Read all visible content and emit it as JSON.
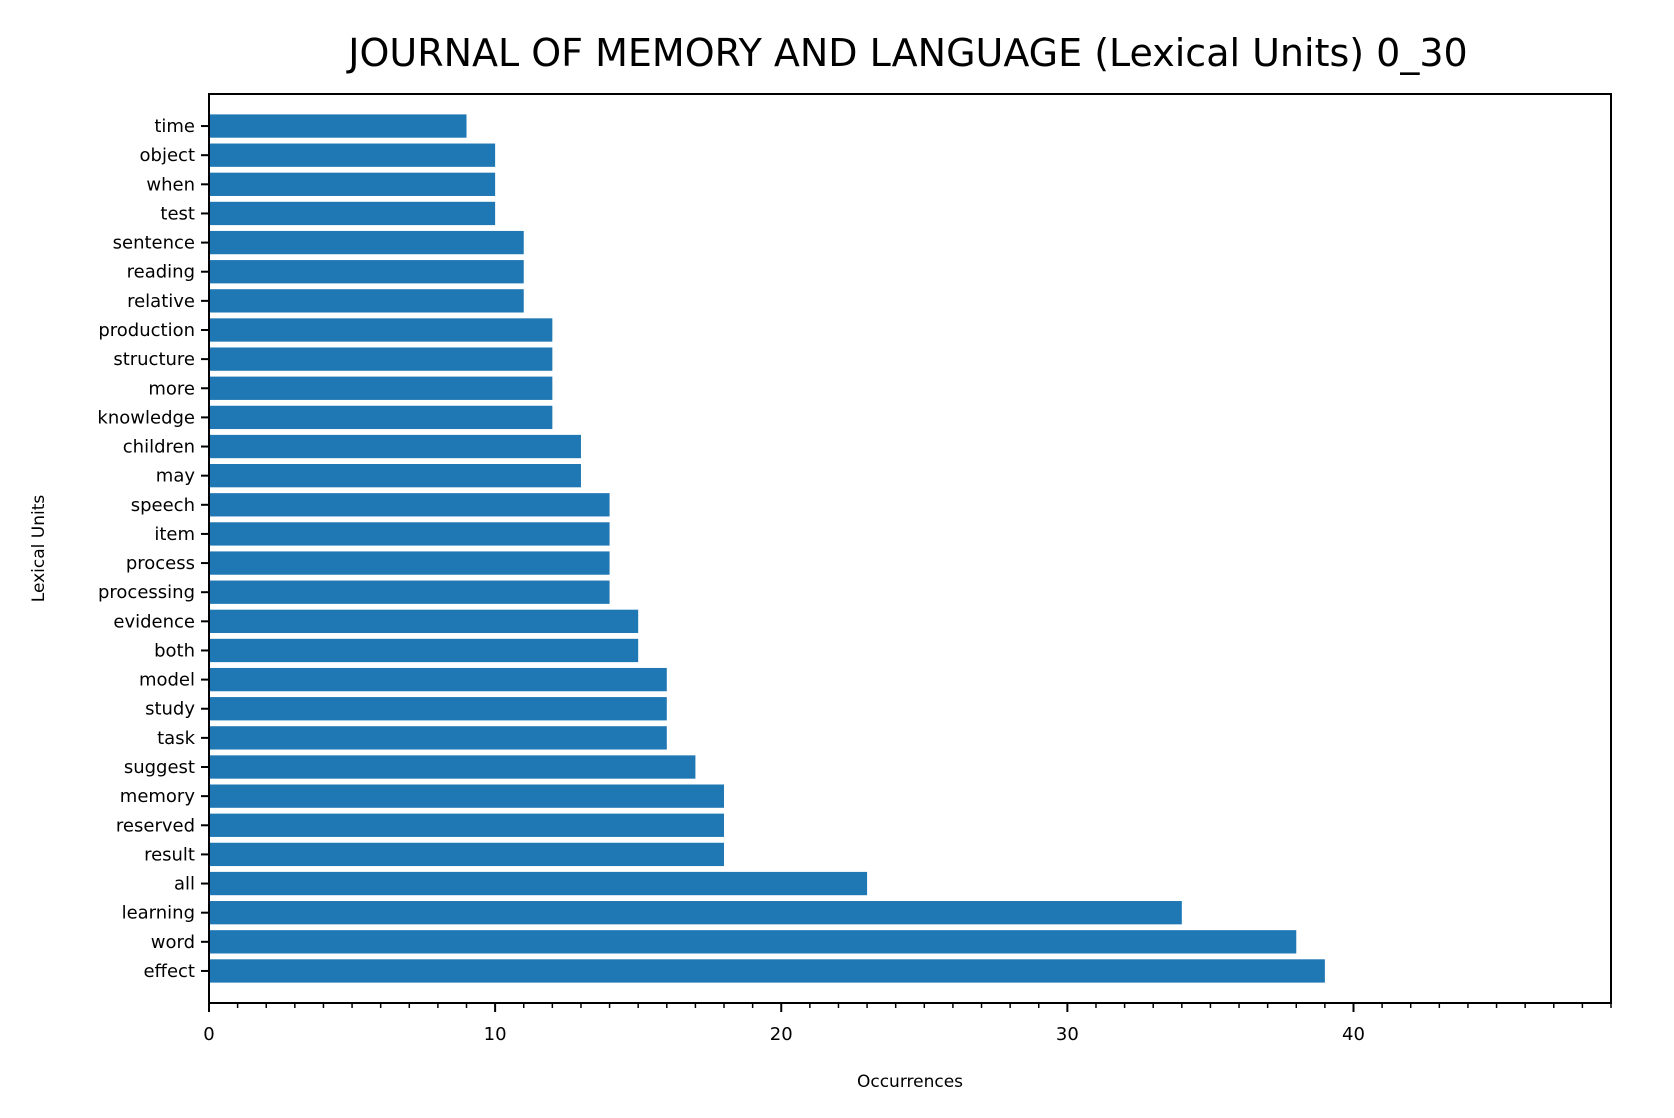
{
  "chart_data": {
    "type": "bar",
    "orientation": "horizontal",
    "title": "JOURNAL OF MEMORY AND LANGUAGE (Lexical Units) 0_30",
    "xlabel": "Occurrences",
    "ylabel": "Lexical Units",
    "xlim": [
      0,
      49
    ],
    "xticks": [
      0,
      10,
      20,
      30,
      40
    ],
    "grid": false,
    "bar_color": "#1f77b4",
    "categories": [
      "effect",
      "word",
      "learning",
      "all",
      "result",
      "reserved",
      "memory",
      "suggest",
      "task",
      "study",
      "model",
      "both",
      "evidence",
      "processing",
      "process",
      "item",
      "speech",
      "may",
      "children",
      "knowledge",
      "more",
      "structure",
      "production",
      "relative",
      "reading",
      "sentence",
      "test",
      "when",
      "object",
      "time"
    ],
    "values": [
      39,
      38,
      34,
      23,
      18,
      18,
      18,
      17,
      16,
      16,
      16,
      15,
      15,
      14,
      14,
      14,
      14,
      13,
      13,
      12,
      12,
      12,
      12,
      11,
      11,
      11,
      10,
      10,
      10,
      9
    ]
  }
}
